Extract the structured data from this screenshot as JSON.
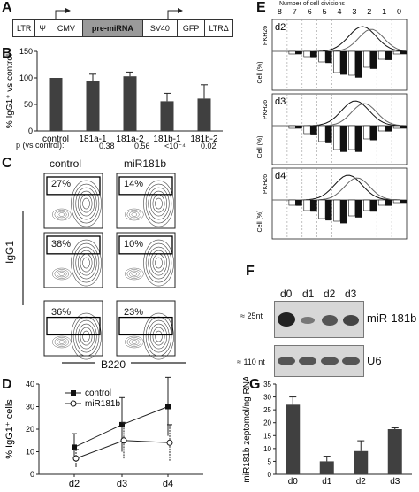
{
  "panels": {
    "A": {
      "letter": "A",
      "construct": [
        "LTR",
        "Ψ",
        "CMV",
        "pre-miRNA",
        "SV40",
        "GFP",
        "LTRΔ"
      ]
    },
    "B": {
      "letter": "B",
      "p_label": "p (vs control):",
      "p_values": [
        "0.38",
        "0.56",
        "<10⁻⁴",
        "0.02"
      ]
    },
    "C": {
      "letter": "C",
      "col_labels": [
        "control",
        "miR181b"
      ],
      "ylabel": "IgG1",
      "xlabel": "B220",
      "percentages": [
        [
          "27%",
          "14%"
        ],
        [
          "38%",
          "10%"
        ],
        [
          "36%",
          "23%"
        ]
      ]
    },
    "D": {
      "letter": "D"
    },
    "E": {
      "letter": "E",
      "header": "Number of cell divisions",
      "divisions": [
        "8",
        "7",
        "6",
        "5",
        "4",
        "3",
        "2",
        "1",
        "0"
      ],
      "days": [
        "d2",
        "d3",
        "d4"
      ],
      "pkh_label": "PKH26",
      "cell_label": "Cell (%)",
      "cell_ticks": [
        "10",
        "0",
        "10",
        "20",
        "30",
        "40",
        "50",
        "60"
      ]
    },
    "F": {
      "letter": "F",
      "lanes": [
        "d0",
        "d1",
        "d2",
        "d3"
      ],
      "size1": "≈ 25nt",
      "size2": "≈ 110 nt",
      "band1": "miR-181b",
      "band2": "U6"
    },
    "G": {
      "letter": "G"
    }
  },
  "chart_data": [
    {
      "type": "bar",
      "panel": "B",
      "categories": [
        "control",
        "181a-1",
        "181a-2",
        "181b-1",
        "181b-2"
      ],
      "values": [
        100,
        95,
        103,
        56,
        61
      ],
      "errors": [
        0,
        12,
        8,
        15,
        26
      ],
      "ylabel": "% IgG1⁺ vs control",
      "ylim": [
        0,
        150
      ],
      "yticks": [
        "0",
        "50",
        "100",
        "150"
      ],
      "color": "#404040"
    },
    {
      "type": "line",
      "panel": "D",
      "categories": [
        "d2",
        "d3",
        "d4"
      ],
      "series": [
        {
          "name": "control",
          "values": [
            12,
            22,
            30
          ],
          "errors": [
            6,
            12,
            13
          ],
          "marker": "filled-square"
        },
        {
          "name": "miR181b",
          "values": [
            7,
            15,
            14
          ],
          "errors": [
            4,
            8,
            8
          ],
          "marker": "open-circle"
        }
      ],
      "ylabel": "% IgG1⁺ cells",
      "ylim": [
        0,
        40
      ],
      "yticks": [
        "0",
        "10",
        "20",
        "30",
        "40"
      ]
    },
    {
      "type": "bar",
      "panel": "G",
      "categories": [
        "d0",
        "d1",
        "d2",
        "d3"
      ],
      "values": [
        27,
        5,
        9,
        17.5
      ],
      "errors": [
        3,
        2,
        4,
        0.5
      ],
      "ylabel": "miR181b zeptomol/ng RNA",
      "ylim": [
        0,
        35
      ],
      "yticks": [
        "0",
        "5",
        "10",
        "15",
        "20",
        "25",
        "30",
        "35"
      ],
      "color": "#404040"
    }
  ]
}
